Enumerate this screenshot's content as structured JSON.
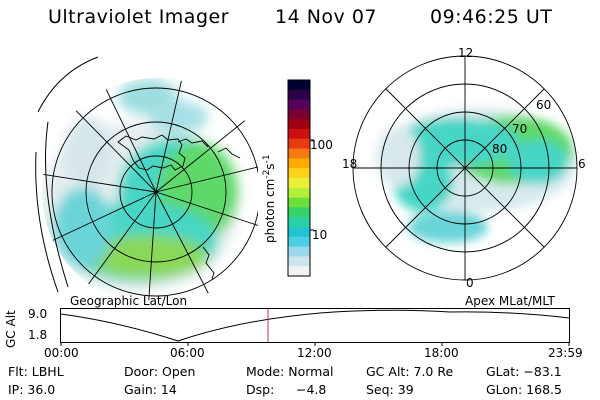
{
  "header": {
    "title": "Ultraviolet Imager",
    "date": "14 Nov 07",
    "time": "09:46:25 UT"
  },
  "left_panel": {
    "label": "Geographic Lat/Lon"
  },
  "right_panel": {
    "label": "Apex MLat/MLT",
    "mlt_labels": [
      "12",
      "18",
      "6",
      "0"
    ],
    "lat_labels": [
      "60",
      "70",
      "80"
    ]
  },
  "colorbar": {
    "unit": "photon cm",
    "unit_sup1": "-2",
    "unit_mid": "s",
    "unit_sup2": "-1",
    "ticks": [
      "100",
      "10"
    ],
    "colors": [
      "#000033",
      "#2a004a",
      "#55005a",
      "#7a0032",
      "#a00010",
      "#cc1010",
      "#e83a10",
      "#f77a10",
      "#ffaa00",
      "#ffd21a",
      "#eaf03a",
      "#b4f03a",
      "#6ce03a",
      "#38d26a",
      "#2ad0a6",
      "#22c4d2",
      "#4ad0e4",
      "#9ad8ec",
      "#cce4ee",
      "#f2f2f2"
    ]
  },
  "timeline": {
    "y_axis_label": "GC Alt",
    "y_ticks": [
      "9.0",
      "1.8"
    ],
    "x_ticks": [
      "00:00",
      "06:00",
      "12:00",
      "18:00",
      "23:59"
    ]
  },
  "info": {
    "filter": "Flt: LBHL",
    "door": "Door: Open",
    "mode": "Mode: Normal",
    "gc_alt": "GC Alt: 7.0 Re",
    "glat": "GLat: −83.1",
    "ip": "IP: 36.0",
    "gain": "Gain: 14",
    "dsp_label": "Dsp:",
    "dsp_value": "−4.8",
    "seq": "Seq: 39",
    "glon": "GLon: 168.5"
  }
}
